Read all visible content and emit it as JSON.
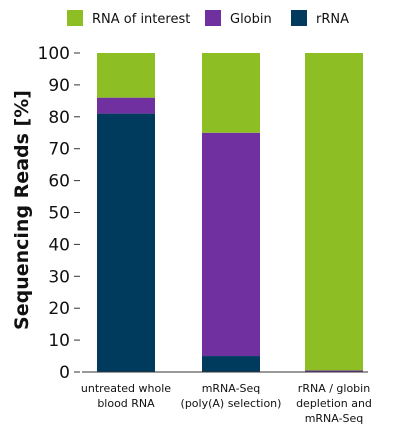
{
  "chart_data": {
    "type": "bar",
    "stacked": true,
    "categories": [
      [
        "untreated whole",
        "blood RNA"
      ],
      [
        "mRNA-Seq",
        "(poly(A) selection)"
      ],
      [
        "rRNA / globin",
        "depletion and",
        "mRNA-Seq"
      ]
    ],
    "series": [
      {
        "name": "rRNA",
        "color": "#003a5c",
        "values": [
          81,
          5,
          0
        ]
      },
      {
        "name": "Globin",
        "color": "#7030a0",
        "values": [
          5,
          70,
          0.5
        ]
      },
      {
        "name": "RNA of interest",
        "color": "#8dbe23",
        "values": [
          14,
          25,
          99.5
        ]
      }
    ],
    "legend_order": [
      "RNA of interest",
      "Globin",
      "rRNA"
    ],
    "legend_position": "top",
    "ylabel": "Sequencing Reads [%]",
    "xlabel": "",
    "ylim": [
      0,
      100
    ],
    "yticks": [
      0,
      10,
      20,
      30,
      40,
      50,
      60,
      70,
      80,
      90,
      100
    ],
    "grid": false
  }
}
